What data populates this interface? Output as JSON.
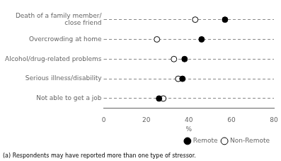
{
  "chart_data": {
    "type": "dot",
    "categories": [
      "Not able to get a job",
      "Serious illness/disability",
      "Alcohol/drug-related problems",
      "Overcrowding at home",
      "Death of a family member/\nclose friend"
    ],
    "series": [
      {
        "name": "Remote",
        "color": "black",
        "marker": "circle",
        "values": [
          26,
          37,
          38,
          46,
          57
        ]
      },
      {
        "name": "Non-Remote",
        "color": "white",
        "marker": "circle",
        "values": [
          28,
          35,
          33,
          25,
          43
        ]
      }
    ],
    "xlabel": "%",
    "xlim": [
      0,
      80
    ],
    "xticks": [
      0,
      20,
      40,
      60,
      80
    ],
    "grid": "y",
    "legend": "lower right",
    "annotations": [
      "(a) Respondents may have reported more than one type of stressor."
    ]
  }
}
